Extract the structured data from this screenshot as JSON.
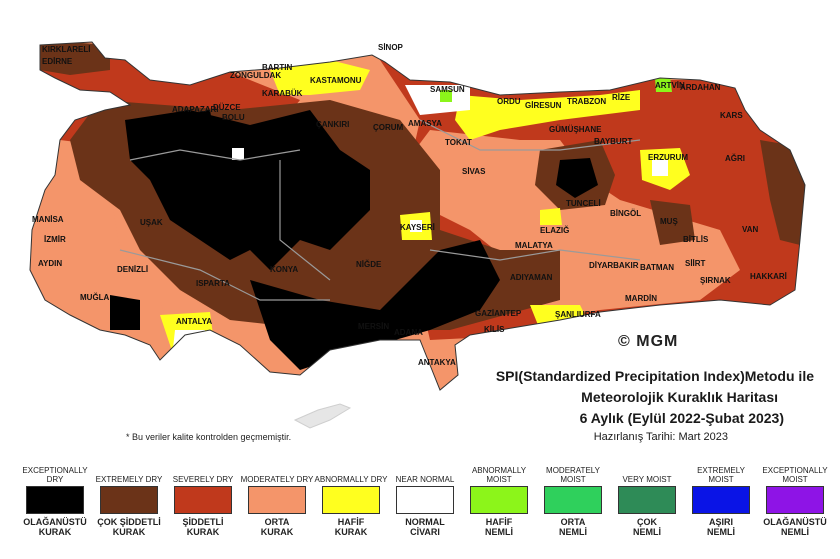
{
  "map": {
    "cities": [
      "KIRKLARELİ",
      "EDİRNE",
      "BARTIN",
      "SİNOP",
      "ZONGULDAK",
      "KASTAMONU",
      "KARABÜK",
      "SAMSUN",
      "ARTVİN",
      "ARDAHAN",
      "ORDU",
      "GİRESUN",
      "TRABZON",
      "RİZE",
      "ADAPAZARI",
      "DÜZCE",
      "BOLU",
      "ÇANKIRI",
      "ÇORUM",
      "AMASYA",
      "TOKAT",
      "GÜMÜŞHANE",
      "BAYBURT",
      "KARS",
      "ERZURUM",
      "AĞRI",
      "SİVAS",
      "MANİSA",
      "İZMİR",
      "UŞAK",
      "KAYSERİ",
      "TUNCELİ",
      "BİNGÖL",
      "MUŞ",
      "VAN",
      "ELAZIĞ",
      "BİTLİS",
      "AYDIN",
      "DENİZLİ",
      "KONYA",
      "NİĞDE",
      "MALATYA",
      "ADIYAMAN",
      "DİYARBAKIR",
      "BATMAN",
      "SİİRT",
      "ŞIRNAK",
      "HAKKARİ",
      "MUĞLA",
      "ISPARTA",
      "ANTALYA",
      "MERSİN",
      "ADANA",
      "ŞANLIURFA",
      "GAZİANTEP",
      "KİLİS",
      "MARDİN",
      "ANTAKYA"
    ]
  },
  "logo": "© MGM",
  "title": {
    "line1": "SPI(Standardized Precipitation Index)Metodu ile",
    "line2": "Meteorolojik Kuraklık Haritası",
    "line3": "6 Aylık (Eylül 2022-Şubat 2023)",
    "line4": "Hazırlanış Tarihi: Mart 2023"
  },
  "note": "* Bu veriler kalite kontrolden geçmemiştir.",
  "legend": [
    {
      "en": "EXCEPTIONALLY DRY",
      "tr1": "OLAĞANÜSTÜ",
      "tr2": "KURAK",
      "color": "#000000"
    },
    {
      "en": "EXTREMELY DRY",
      "tr1": "ÇOK ŞİDDETLİ",
      "tr2": "KURAK",
      "color": "#6b3318"
    },
    {
      "en": "SEVERELY DRY",
      "tr1": "ŞİDDETLİ",
      "tr2": "KURAK",
      "color": "#c0391c"
    },
    {
      "en": "MODERATELY DRY",
      "tr1": "ORTA",
      "tr2": "KURAK",
      "color": "#f4956a"
    },
    {
      "en": "ABNORMALLY DRY",
      "tr1": "HAFİF",
      "tr2": "KURAK",
      "color": "#ffff1f"
    },
    {
      "en": "NEAR NORMAL",
      "tr1": "NORMAL",
      "tr2": "CİVARI",
      "color": "#ffffff"
    },
    {
      "en": "ABNORMALLY MOIST",
      "tr1": "HAFİF",
      "tr2": "NEMLİ",
      "color": "#8cf51a"
    },
    {
      "en": "MODERATELY MOIST",
      "tr1": "ORTA",
      "tr2": "NEMLİ",
      "color": "#2fd05c"
    },
    {
      "en": "VERY MOIST",
      "tr1": "ÇOK",
      "tr2": "NEMLİ",
      "color": "#2e8b57"
    },
    {
      "en": "EXTREMELY MOIST",
      "tr1": "AŞIRI",
      "tr2": "NEMLİ",
      "color": "#0a14e6"
    },
    {
      "en": "EXCEPTIONALLY MOIST",
      "tr1": "OLAĞANÜSTÜ",
      "tr2": "NEMLİ",
      "color": "#8e14e6"
    }
  ]
}
